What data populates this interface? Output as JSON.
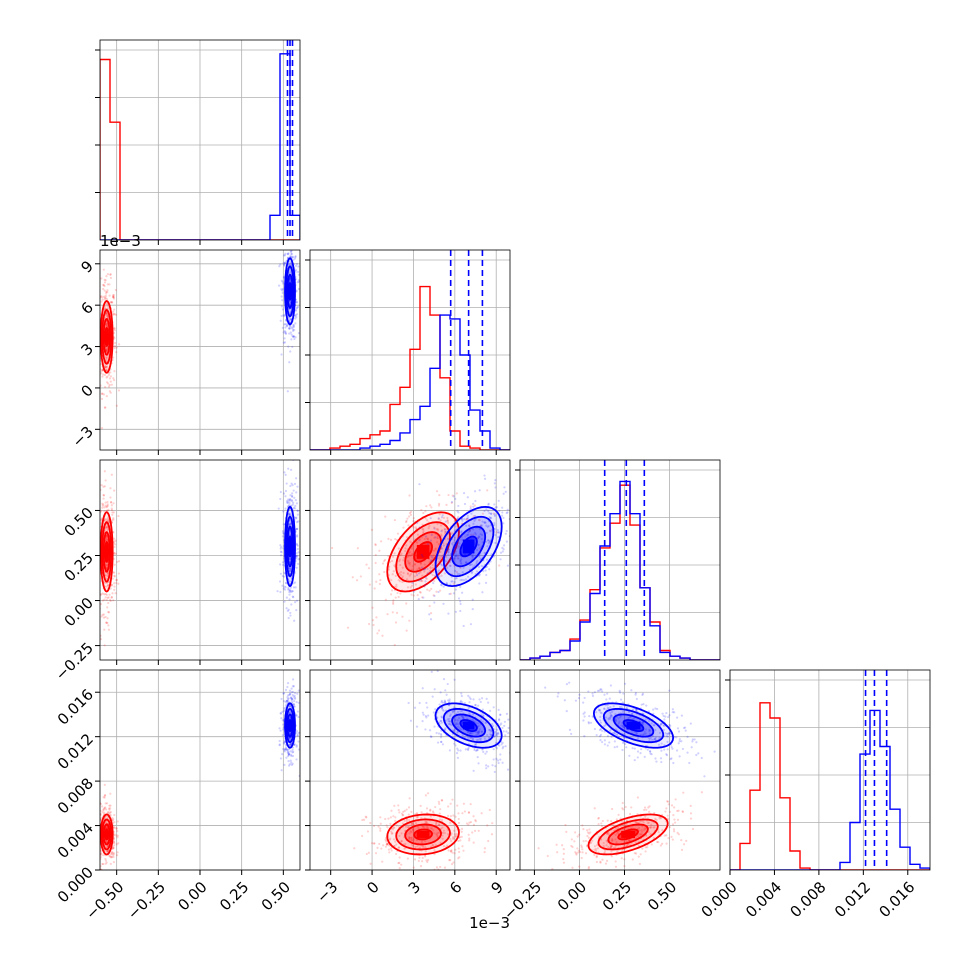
{
  "chart_data": {
    "type": "corner-plot",
    "title": "",
    "parameters": [
      {
        "range": [
          -0.6,
          0.6
        ],
        "ticks": [
          -0.5,
          -0.25,
          0.0,
          0.25,
          0.5
        ],
        "tick_labels": [
          "−0.50",
          "−0.25",
          "0.00",
          "0.25",
          "0.50"
        ],
        "offset_text": ""
      },
      {
        "range": [
          -4.5,
          10
        ],
        "ticks": [
          -3,
          0,
          3,
          6,
          9
        ],
        "tick_labels": [
          "−3",
          "0",
          "3",
          "6",
          "9"
        ],
        "offset_text": "1e−3"
      },
      {
        "range": [
          -0.33,
          0.78
        ],
        "ticks": [
          -0.25,
          0.0,
          0.25,
          0.5
        ],
        "tick_labels": [
          "−0.25",
          "0.00",
          "0.25",
          "0.50"
        ],
        "offset_text": ""
      },
      {
        "range": [
          0.0,
          0.018
        ],
        "ticks": [
          0.0,
          0.004,
          0.008,
          0.012,
          0.016
        ],
        "tick_labels": [
          "0.000",
          "0.004",
          "0.008",
          "0.012",
          "0.016"
        ],
        "offset_text": ""
      }
    ],
    "series": [
      {
        "color": "#ff0000",
        "mean": [
          -0.56,
          3.7,
          0.27,
          0.0032
        ],
        "sd": [
          0.018,
          1.3,
          0.11,
          0.0009
        ],
        "corr": [
          [
            0,
            0,
            0,
            0
          ],
          [
            0,
            0,
            0.5,
            0.1
          ],
          [
            0,
            0.5,
            0,
            0.55
          ],
          [
            0,
            0.1,
            0.55,
            0
          ]
        ]
      },
      {
        "color": "#0000ff",
        "mean": [
          0.54,
          7.0,
          0.3,
          0.013
        ],
        "sd": [
          0.015,
          1.2,
          0.11,
          0.001
        ],
        "corr": [
          [
            0,
            0,
            0,
            0
          ],
          [
            0,
            0,
            0.5,
            -0.45
          ],
          [
            0,
            0.5,
            0,
            -0.55
          ],
          [
            0,
            -0.45,
            -0.55,
            0
          ]
        ]
      }
    ],
    "histograms": [
      {
        "red": [
          0.95,
          0.62,
          0,
          0,
          0,
          0,
          0,
          0,
          0,
          0,
          0,
          0,
          0,
          0,
          0,
          0,
          0,
          0,
          0,
          0
        ],
        "blue": [
          0,
          0,
          0,
          0,
          0,
          0,
          0,
          0,
          0,
          0,
          0,
          0,
          0,
          0,
          0,
          0,
          0,
          0.13,
          0.98,
          0.13
        ]
      },
      {
        "red": [
          0,
          0,
          0.01,
          0.02,
          0.03,
          0.06,
          0.08,
          0.1,
          0.24,
          0.33,
          0.53,
          0.86,
          0.71,
          0.38,
          0.1,
          0.02,
          0.01,
          0,
          0,
          0
        ],
        "blue": [
          0,
          0,
          0,
          0,
          0,
          0.01,
          0.02,
          0.03,
          0.05,
          0.09,
          0.16,
          0.23,
          0.43,
          0.71,
          0.69,
          0.5,
          0.21,
          0.1,
          0.01,
          0
        ]
      },
      {
        "red": [
          0,
          0.01,
          0.02,
          0.04,
          0.05,
          0.11,
          0.21,
          0.37,
          0.59,
          0.72,
          0.92,
          0.71,
          0.38,
          0.2,
          0.05,
          0.02,
          0.01,
          0,
          0,
          0
        ],
        "blue": [
          0,
          0.01,
          0.02,
          0.04,
          0.05,
          0.1,
          0.2,
          0.35,
          0.6,
          0.77,
          0.94,
          0.77,
          0.38,
          0.18,
          0.04,
          0.02,
          0.01,
          0,
          0,
          0
        ]
      },
      {
        "red": [
          0,
          0.14,
          0.42,
          0.88,
          0.8,
          0.38,
          0.1,
          0.01,
          0,
          0,
          0,
          0,
          0,
          0,
          0,
          0,
          0,
          0,
          0,
          0
        ],
        "blue": [
          0,
          0,
          0,
          0,
          0,
          0,
          0,
          0,
          0,
          0,
          0,
          0.04,
          0.25,
          0.61,
          0.84,
          0.65,
          0.32,
          0.12,
          0.03,
          0.01
        ]
      }
    ],
    "quantiles_blue": [
      [
        0.525,
        0.54,
        0.555
      ],
      [
        5.7,
        7.0,
        8.0
      ],
      [
        0.14,
        0.26,
        0.36
      ],
      [
        0.0122,
        0.013,
        0.0141
      ]
    ],
    "contour_levels_sigma": [
      0.5,
      1.0,
      1.5,
      2.0
    ],
    "colors": {
      "red": "#ff0000",
      "blue": "#0000ff",
      "grid": "#b0b0b0",
      "frame": "#000000"
    },
    "grid": true,
    "legend": "none"
  }
}
